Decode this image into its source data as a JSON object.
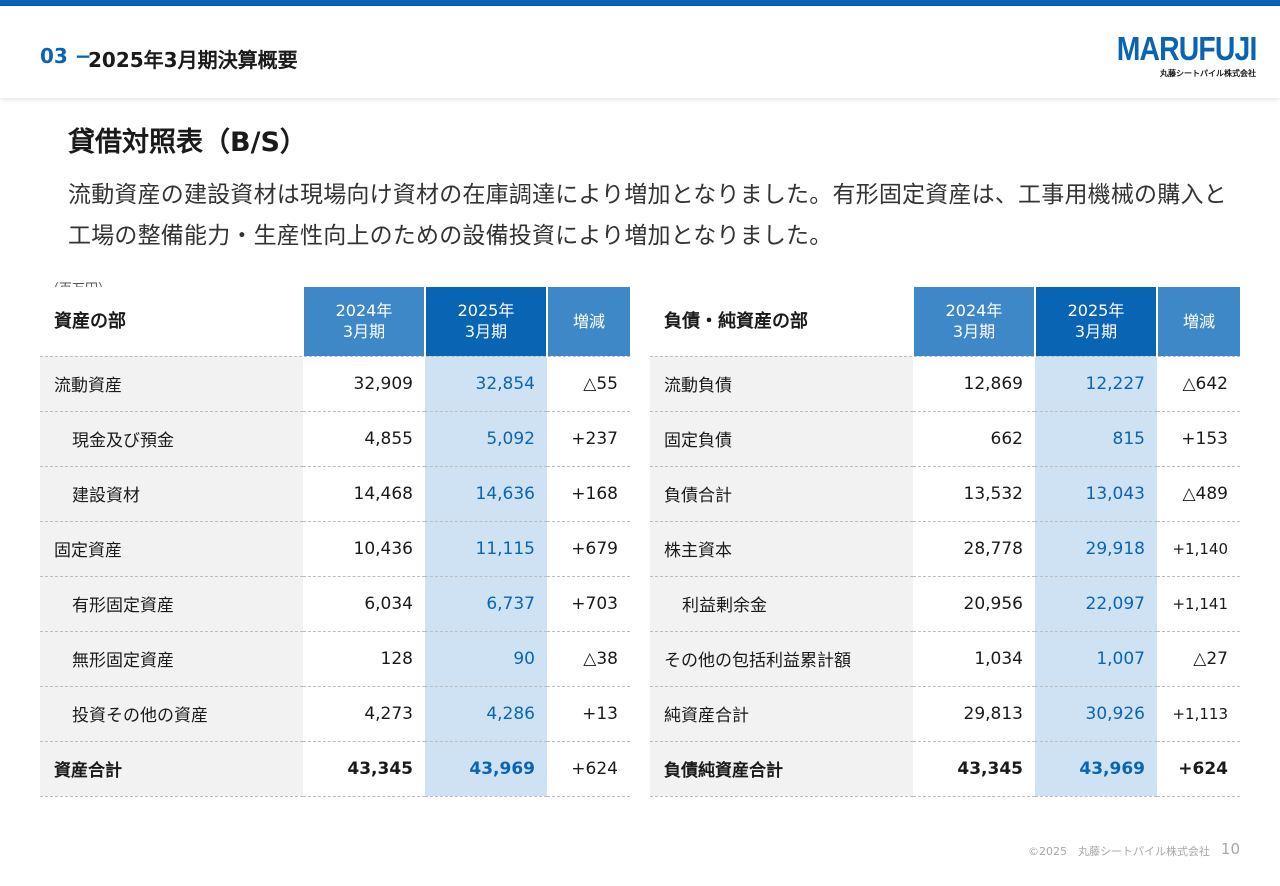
{
  "header": {
    "section_number": "03 −",
    "section_title": "2025年3月期決算概要",
    "logo": "MARUFUJI",
    "logo_sub": "丸藤シートパイル株式会社"
  },
  "page": {
    "heading": "貸借対照表（B/S）",
    "description": "流動資産の建設資材は現場向け資材の在庫調達により増加となりました。有形固定資産は、工事用機械の購入と工場の整備能力・生産性向上のための設備投資により増加となりました。",
    "unit": "（百万円）"
  },
  "assets": {
    "caption": "資産の部",
    "col_2024_line1": "2024年",
    "col_2024_line2": "3月期",
    "col_2025_line1": "2025年",
    "col_2025_line2": "3月期",
    "col_diff": "増減",
    "rows": [
      {
        "label": "流動資産",
        "v2024": "32,909",
        "v2025": "32,854",
        "diff": "△55"
      },
      {
        "label": "現金及び預金",
        "v2024": "4,855",
        "v2025": "5,092",
        "diff": "+237"
      },
      {
        "label": "建設資材",
        "v2024": "14,468",
        "v2025": "14,636",
        "diff": "+168"
      },
      {
        "label": "固定資産",
        "v2024": "10,436",
        "v2025": "11,115",
        "diff": "+679"
      },
      {
        "label": "有形固定資産",
        "v2024": "6,034",
        "v2025": "6,737",
        "diff": "+703"
      },
      {
        "label": "無形固定資産",
        "v2024": "128",
        "v2025": "90",
        "diff": "△38"
      },
      {
        "label": "投資その他の資産",
        "v2024": "4,273",
        "v2025": "4,286",
        "diff": "+13"
      },
      {
        "label": "資産合計",
        "v2024": "43,345",
        "v2025": "43,969",
        "diff": "+624"
      }
    ]
  },
  "liabilities": {
    "caption": "負債・純資産の部",
    "col_2024_line1": "2024年",
    "col_2024_line2": "3月期",
    "col_2025_line1": "2025年",
    "col_2025_line2": "3月期",
    "col_diff": "増減",
    "rows": [
      {
        "label": "流動負債",
        "v2024": "12,869",
        "v2025": "12,227",
        "diff": "△642"
      },
      {
        "label": "固定負債",
        "v2024": "662",
        "v2025": "815",
        "diff": "+153"
      },
      {
        "label": "負債合計",
        "v2024": "13,532",
        "v2025": "13,043",
        "diff": "△489"
      },
      {
        "label": "株主資本",
        "v2024": "28,778",
        "v2025": "29,918",
        "diff": "+1,140"
      },
      {
        "label": "利益剰余金",
        "v2024": "20,956",
        "v2025": "22,097",
        "diff": "+1,141"
      },
      {
        "label": "その他の包括利益累計額",
        "v2024": "1,034",
        "v2025": "1,007",
        "diff": "△27"
      },
      {
        "label": "純資産合計",
        "v2024": "29,813",
        "v2025": "30,926",
        "diff": "+1,113"
      },
      {
        "label": "負債純資産合計",
        "v2024": "43,345",
        "v2025": "43,969",
        "diff": "+624"
      }
    ]
  },
  "footer": {
    "copyright": "©2025　丸藤シートパイル株式会社",
    "page_number": "10"
  },
  "colors": {
    "brand_blue": "#0a64b4",
    "header_light_blue": "#3f88c8",
    "highlight_column": "#cfe2f3",
    "label_bg": "#f2f2f2"
  }
}
